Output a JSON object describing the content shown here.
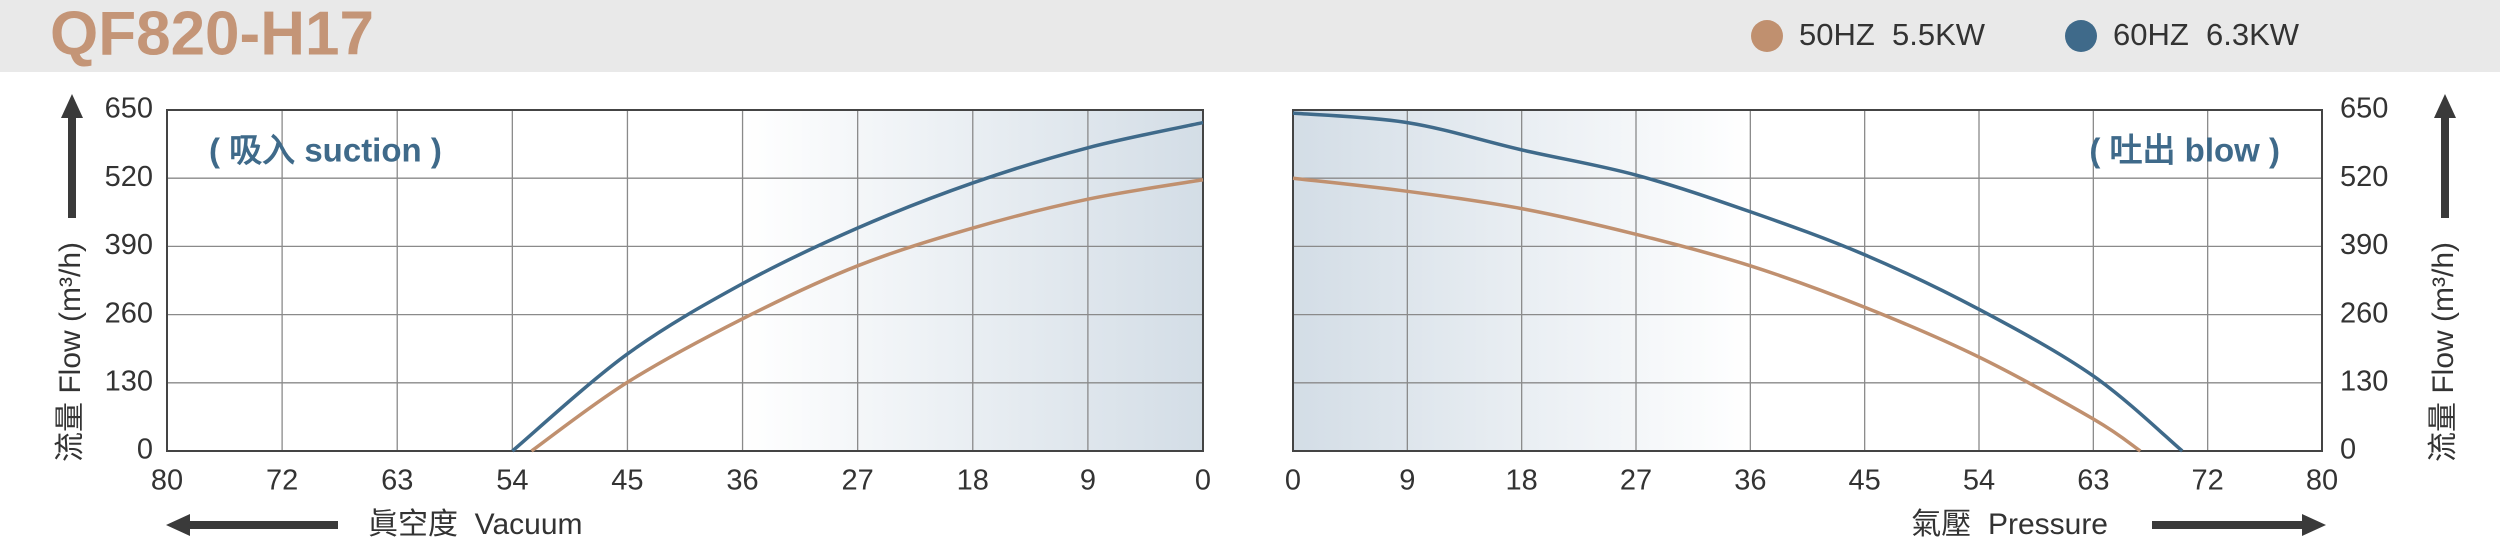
{
  "title": "QF820-H17",
  "chart_data": [
    {
      "type": "line",
      "annotation": "( 吸入 suction )",
      "xlabel": "眞空度  Vacuum",
      "ylabel": "流量 Flow (m³/h)",
      "xlim": [
        80,
        0
      ],
      "xticks": [
        80,
        72,
        63,
        54,
        45,
        36,
        27,
        18,
        9,
        0
      ],
      "ylim": [
        0,
        650
      ],
      "yticks": [
        0,
        130,
        260,
        390,
        520,
        650
      ],
      "grid": true,
      "y_axis_side": "left",
      "series": [
        {
          "name": "50HZ  5.5KW",
          "color": "#c0906f",
          "x": [
            52.5,
            45,
            36,
            27,
            18,
            9,
            0
          ],
          "values": [
            0,
            131,
            252,
            353,
            425,
            480,
            517
          ]
        },
        {
          "name": "60HZ  6.3KW",
          "color": "#3f6a8a",
          "x": [
            54,
            45,
            36,
            27,
            18,
            9,
            0
          ],
          "values": [
            0,
            185,
            319,
            425,
            511,
            578,
            626
          ]
        }
      ]
    },
    {
      "type": "line",
      "annotation": "( 吐出 blow )",
      "xlabel": "氣壓  Pressure",
      "ylabel": "流量 Flow (m³/h)",
      "xlim": [
        0,
        80
      ],
      "xticks": [
        0,
        9,
        18,
        27,
        36,
        45,
        54,
        63,
        72,
        80
      ],
      "ylim": [
        0,
        650
      ],
      "yticks": [
        0,
        130,
        260,
        390,
        520,
        650
      ],
      "grid": true,
      "y_axis_side": "right",
      "series": [
        {
          "color": "#c0906f",
          "x": [
            0,
            9,
            18,
            27,
            36,
            45,
            54,
            63,
            66.7
          ],
          "values": [
            520,
            495,
            462,
            413,
            353,
            274,
            179,
            61,
            0
          ]
        },
        {
          "color": "#3f6a8a",
          "x": [
            0,
            9,
            18,
            27,
            36,
            45,
            54,
            63,
            70
          ],
          "values": [
            644,
            626,
            574,
            526,
            456,
            374,
            270,
            143,
            0
          ]
        }
      ]
    }
  ]
}
